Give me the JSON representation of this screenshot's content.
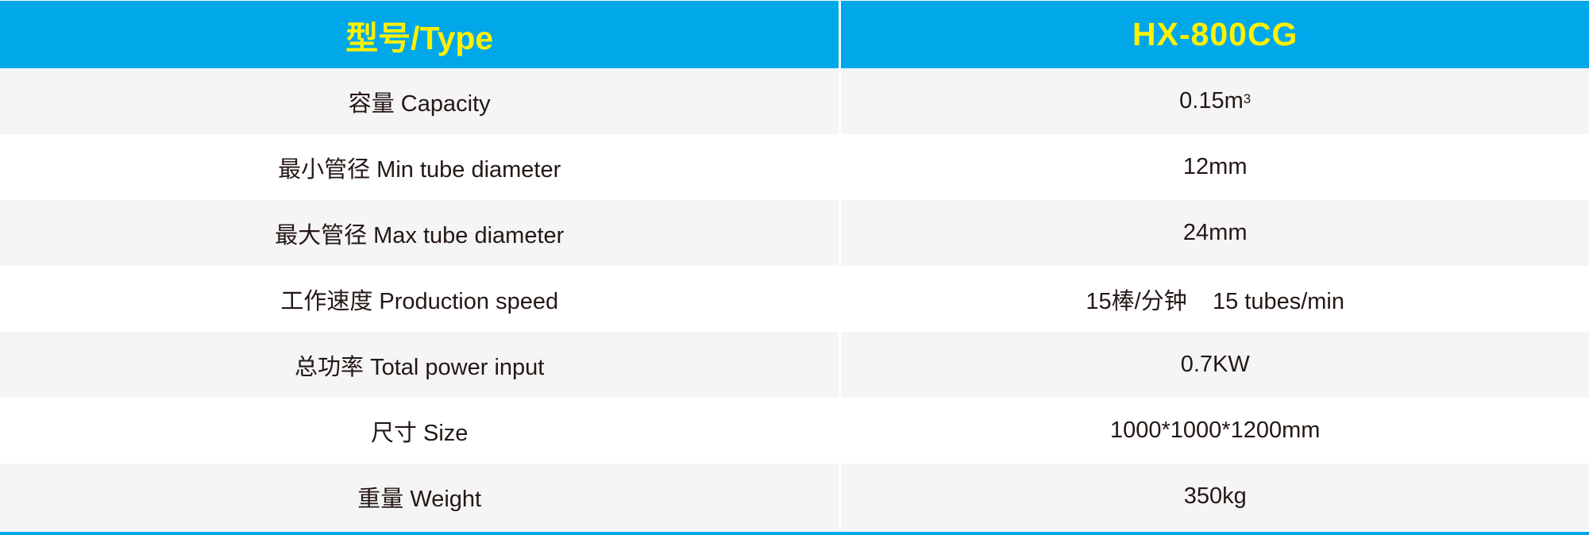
{
  "colors": {
    "header_bg": "#00a8e9",
    "header_text": "#fff100",
    "row_alt": "#f5f5f5",
    "text": "#231815"
  },
  "header": {
    "label": "型号/Type",
    "value": "HX-800CG"
  },
  "rows": [
    {
      "label": "容量 Capacity",
      "value": "0.15m",
      "value_sup": "3"
    },
    {
      "label": "最小管径 Min tube diameter",
      "value": "12mm"
    },
    {
      "label": "最大管径 Max tube diameter",
      "value": "24mm"
    },
    {
      "label": "工作速度 Production speed",
      "value": "15棒/分钟    15 tubes/min"
    },
    {
      "label": "总功率 Total power input",
      "value": "0.7KW"
    },
    {
      "label": "尺寸 Size",
      "value": "1000*1000*1200mm"
    },
    {
      "label": "重量 Weight",
      "value": "350kg"
    }
  ]
}
